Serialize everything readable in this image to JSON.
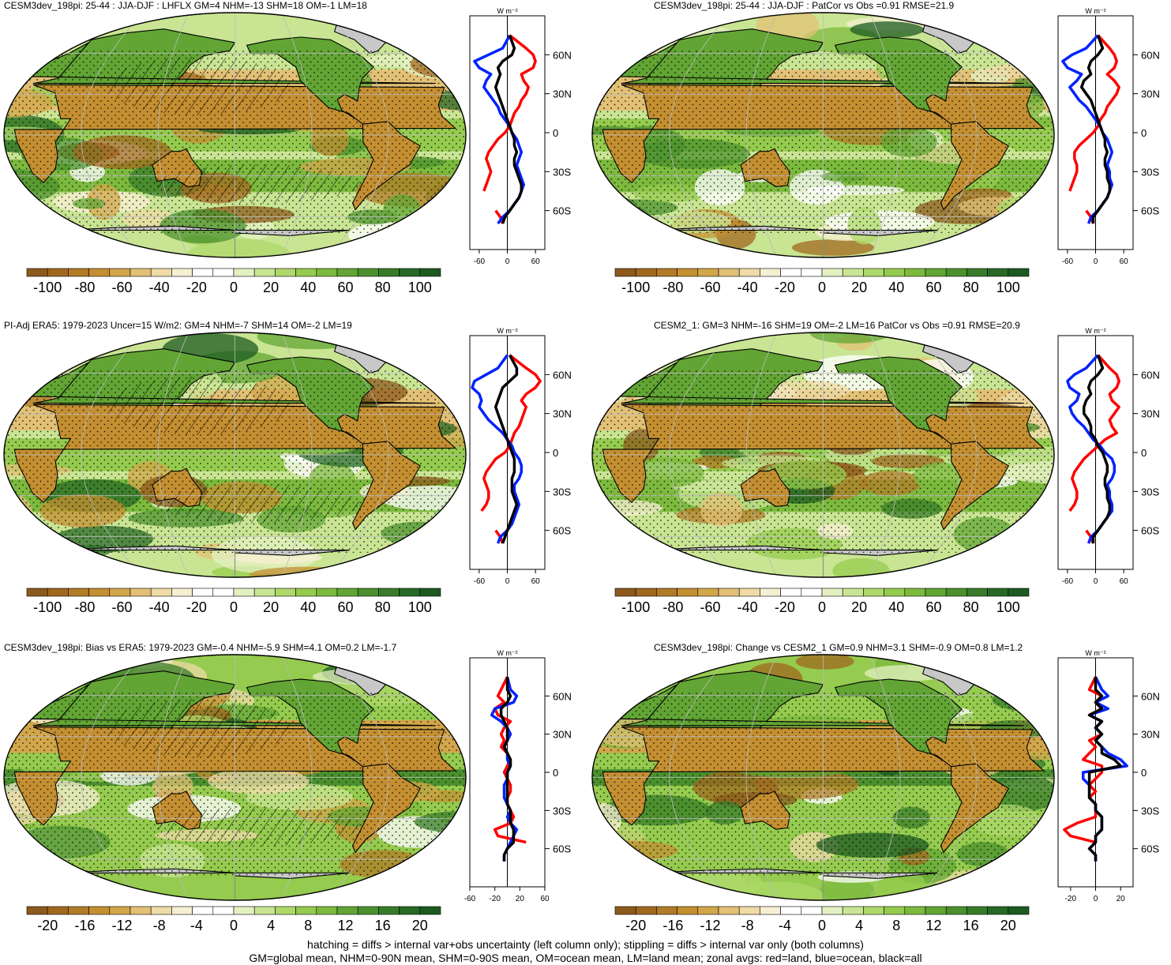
{
  "panels": [
    {
      "title": "CESM3dev_198pi: 25-44 : JJA-DJF : LHFLX GM=4 NHM=-13 SHM=18 OM=-1 LM=18",
      "colorbar_labels": [
        "-100",
        "-80",
        "-60",
        "-40",
        "-20",
        "0",
        "20",
        "40",
        "60",
        "80",
        "100"
      ],
      "profile_units": "W m⁻²",
      "profile_x_ticks": [
        "-60",
        "0",
        "60"
      ],
      "hatched": true
    },
    {
      "title": "CESM3dev_198pi: 25-44 : JJA-DJF : PatCor vs Obs =0.91 RMSE=21.9",
      "colorbar_labels": [
        "-100",
        "-80",
        "-60",
        "-40",
        "-20",
        "0",
        "20",
        "40",
        "60",
        "80",
        "100"
      ],
      "profile_units": "W m⁻²",
      "profile_x_ticks": [
        "-60",
        "0",
        "60"
      ],
      "hatched": false
    },
    {
      "title": "PI-Adj ERA5: 1979-2023 Uncer=15 W/m2: GM=4 NHM=-7 SHM=14 OM=-2 LM=19",
      "colorbar_labels": [
        "-100",
        "-80",
        "-60",
        "-40",
        "-20",
        "0",
        "20",
        "40",
        "60",
        "80",
        "100"
      ],
      "profile_units": "W m⁻²",
      "profile_x_ticks": [
        "-60",
        "0",
        "60"
      ],
      "hatched": true
    },
    {
      "title": "CESM2_1: GM=3 NHM=-16 SHM=19 OM=-2 LM=16 PatCor vs Obs =0.91 RMSE=20.9",
      "colorbar_labels": [
        "-100",
        "-80",
        "-60",
        "-40",
        "-20",
        "0",
        "20",
        "40",
        "60",
        "80",
        "100"
      ],
      "profile_units": "W m⁻²",
      "profile_x_ticks": [
        "-60",
        "0",
        "60"
      ],
      "hatched": false
    },
    {
      "title": "CESM3dev_198pi: Bias vs ERA5: 1979-2023 GM=-0.4 NHM=-5.9 SHM=4.1 OM=0.2 LM=-1.7",
      "colorbar_labels": [
        "-20",
        "-16",
        "-12",
        "-8",
        "-4",
        "0",
        "4",
        "8",
        "12",
        "16",
        "20"
      ],
      "profile_units": "W m⁻²",
      "profile_x_ticks": [
        "-60",
        "-20",
        "20",
        "60"
      ],
      "hatched": true
    },
    {
      "title": "CESM3dev_198pi: Change vs CESM2_1 GM=0.9 NHM=3.1 SHM=-0.9 OM=0.8 LM=1.2",
      "colorbar_labels": [
        "-20",
        "-16",
        "-12",
        "-8",
        "-4",
        "0",
        "4",
        "8",
        "12",
        "16",
        "20"
      ],
      "profile_units": "W m⁻²",
      "profile_x_ticks": [
        "-20",
        "0",
        "20"
      ],
      "hatched": false
    }
  ],
  "lat_ticks": [
    "60N",
    "30N",
    "0",
    "30S",
    "60S"
  ],
  "colors": {
    "brown_to_green": [
      "#8c5a1c",
      "#a0681f",
      "#b27b27",
      "#c48f31",
      "#d2a64a",
      "#e2c075",
      "#eedba6",
      "#f7efd3",
      "#ffffff",
      "#ffffff",
      "#e3f0c2",
      "#c9e593",
      "#aed86a",
      "#95cb4e",
      "#7cba3e",
      "#62a534",
      "#4b902e",
      "#387c29",
      "#276925",
      "#1c5a20"
    ],
    "land_zonal": "#ff0000",
    "ocean_zonal": "#0022ff",
    "all_zonal": "#000000",
    "missing": "#c8c8c8"
  },
  "footer": {
    "line1": "hatching = diffs > internal var+obs uncertainty (left column only); stippling = diffs > internal var only (both columns)",
    "line2": "GM=global mean, NHM=0-90N mean, SHM=0-90S mean, OM=ocean mean, LM=land mean; zonal avgs: red=land, blue=ocean, black=all"
  },
  "chart_data": [
    {
      "type": "heatmap",
      "title": "CESM3dev_198pi: 25-44 : JJA-DJF : LHFLX GM=4 NHM=-13 SHM=18 OM=-1 LM=18",
      "colorbar_range": [
        -100,
        100
      ],
      "units": "W m-2",
      "zonal_profile": {
        "type": "line",
        "xlim": [
          -80,
          80
        ],
        "lat": [
          75,
          65,
          60,
          55,
          50,
          45,
          40,
          35,
          30,
          25,
          20,
          15,
          10,
          5,
          0,
          -5,
          -10,
          -15,
          -20,
          -25,
          -30,
          -35,
          -40,
          -45,
          -50,
          -55,
          -60,
          -65,
          -70
        ],
        "series": [
          {
            "name": "red=land",
            "values": [
              5,
              40,
              55,
              60,
              55,
              30,
              35,
              45,
              40,
              30,
              25,
              15,
              10,
              5,
              -5,
              -20,
              -30,
              -40,
              -45,
              -40,
              -35,
              -40,
              -45,
              -50,
              null,
              null,
              -25,
              -15,
              -10
            ]
          },
          {
            "name": "blue=ocean",
            "values": [
              5,
              -10,
              -40,
              -70,
              -60,
              -35,
              -45,
              -50,
              -40,
              -30,
              -20,
              -15,
              -5,
              5,
              10,
              20,
              25,
              30,
              25,
              20,
              25,
              30,
              35,
              30,
              25,
              15,
              5,
              -10,
              -20
            ]
          },
          {
            "name": "black=all",
            "values": [
              5,
              15,
              10,
              -10,
              -20,
              -15,
              -20,
              -25,
              -20,
              -15,
              -10,
              -5,
              0,
              5,
              10,
              15,
              15,
              20,
              15,
              15,
              20,
              25,
              30,
              30,
              25,
              15,
              5,
              -5,
              -10
            ]
          }
        ]
      }
    },
    {
      "type": "heatmap",
      "title": "CESM3dev_198pi: 25-44 : JJA-DJF : PatCor vs Obs =0.91 RMSE=21.9",
      "colorbar_range": [
        -100,
        100
      ],
      "units": "W m-2",
      "zonal_profile": {
        "type": "line",
        "xlim": [
          -80,
          80
        ],
        "lat": [
          75,
          65,
          60,
          55,
          50,
          45,
          40,
          35,
          30,
          25,
          20,
          15,
          10,
          5,
          0,
          -5,
          -10,
          -15,
          -20,
          -25,
          -30,
          -35,
          -40,
          -45,
          -50,
          -55,
          -60,
          -65,
          -70
        ],
        "series": [
          {
            "name": "red=land",
            "values": [
              5,
              30,
              40,
              45,
              40,
              25,
              40,
              50,
              45,
              35,
              25,
              20,
              10,
              5,
              -5,
              -20,
              -35,
              -45,
              -45,
              -40,
              -40,
              -45,
              -50,
              -55,
              null,
              null,
              -20,
              -10,
              -5
            ]
          },
          {
            "name": "blue=ocean",
            "values": [
              5,
              -20,
              -50,
              -70,
              -60,
              -30,
              -40,
              -55,
              -45,
              -35,
              -20,
              -10,
              0,
              10,
              15,
              25,
              30,
              35,
              30,
              25,
              30,
              30,
              35,
              30,
              25,
              15,
              5,
              -10,
              -15
            ]
          },
          {
            "name": "black=all",
            "values": [
              5,
              15,
              5,
              -10,
              -15,
              -10,
              -25,
              -30,
              -20,
              -10,
              -5,
              0,
              5,
              10,
              15,
              20,
              20,
              25,
              20,
              20,
              25,
              25,
              30,
              30,
              25,
              15,
              5,
              -5,
              -5
            ]
          }
        ]
      }
    },
    {
      "type": "heatmap",
      "title": "PI-Adj ERA5: 1979-2023 Uncer=15 W/m2: GM=4 NHM=-7 SHM=14 OM=-2 LM=19",
      "colorbar_range": [
        -100,
        100
      ],
      "units": "W m-2",
      "zonal_profile": {
        "type": "line",
        "xlim": [
          -80,
          80
        ],
        "lat": [
          75,
          65,
          60,
          55,
          50,
          45,
          40,
          35,
          30,
          25,
          20,
          15,
          10,
          5,
          0,
          -5,
          -10,
          -15,
          -20,
          -25,
          -30,
          -35,
          -40,
          -45,
          -50,
          -55,
          -60,
          -65,
          -70
        ],
        "series": [
          {
            "name": "red=land",
            "values": [
              5,
              40,
              60,
              70,
              60,
              40,
              30,
              40,
              35,
              30,
              25,
              15,
              10,
              5,
              -5,
              -25,
              -35,
              -45,
              -50,
              -45,
              -40,
              -40,
              -45,
              -55,
              null,
              null,
              -25,
              -15,
              -10
            ]
          },
          {
            "name": "blue=ocean",
            "values": [
              0,
              -20,
              -45,
              -70,
              -75,
              -60,
              -55,
              -60,
              -50,
              -40,
              -25,
              -10,
              0,
              10,
              15,
              25,
              30,
              30,
              25,
              15,
              15,
              20,
              25,
              20,
              15,
              10,
              0,
              -15,
              -20
            ]
          },
          {
            "name": "black=all",
            "values": [
              5,
              20,
              20,
              5,
              -10,
              -15,
              -20,
              -25,
              -20,
              -15,
              -10,
              -5,
              0,
              5,
              10,
              15,
              15,
              15,
              10,
              10,
              10,
              15,
              20,
              15,
              10,
              5,
              0,
              -5,
              -10
            ]
          }
        ]
      }
    },
    {
      "type": "heatmap",
      "title": "CESM2_1: GM=3 NHM=-16 SHM=19 OM=-2 LM=16 PatCor vs Obs =0.91 RMSE=20.9",
      "colorbar_range": [
        -100,
        100
      ],
      "units": "W m-2",
      "zonal_profile": {
        "type": "line",
        "xlim": [
          -80,
          80
        ],
        "lat": [
          75,
          65,
          60,
          55,
          50,
          45,
          40,
          35,
          30,
          25,
          20,
          15,
          10,
          5,
          0,
          -5,
          -10,
          -15,
          -20,
          -25,
          -30,
          -35,
          -40,
          -45,
          -50,
          -55,
          -60,
          -65,
          -70
        ],
        "series": [
          {
            "name": "red=land",
            "values": [
              5,
              30,
              45,
              50,
              45,
              30,
              35,
              50,
              40,
              30,
              35,
              45,
              20,
              5,
              -10,
              -25,
              -35,
              -45,
              -50,
              -45,
              -40,
              -40,
              -45,
              -55,
              null,
              null,
              -20,
              -10,
              -5
            ]
          },
          {
            "name": "blue=ocean",
            "values": [
              5,
              -20,
              -45,
              -60,
              -55,
              -35,
              -40,
              -55,
              -50,
              -40,
              -25,
              -15,
              -5,
              10,
              20,
              35,
              40,
              40,
              35,
              25,
              30,
              30,
              35,
              35,
              25,
              15,
              5,
              -10,
              -15
            ]
          },
          {
            "name": "black=all",
            "values": [
              5,
              15,
              5,
              -10,
              -15,
              -10,
              -20,
              -25,
              -25,
              -15,
              -10,
              -10,
              0,
              5,
              15,
              20,
              25,
              25,
              20,
              20,
              25,
              25,
              30,
              30,
              25,
              15,
              5,
              -5,
              -5
            ]
          }
        ]
      }
    },
    {
      "type": "heatmap",
      "title": "CESM3dev_198pi: Bias vs ERA5: 1979-2023 GM=-0.4 NHM=-5.9 SHM=4.1 OM=0.2 LM=-1.7",
      "colorbar_range": [
        -20,
        20
      ],
      "units": "W m-2",
      "zonal_profile": {
        "type": "line",
        "xlim": [
          -60,
          60
        ],
        "lat": [
          75,
          65,
          60,
          55,
          50,
          45,
          40,
          35,
          30,
          25,
          20,
          15,
          10,
          5,
          0,
          -5,
          -10,
          -15,
          -20,
          -25,
          -30,
          -35,
          -40,
          -45,
          -50,
          -55,
          -60,
          -65,
          -70
        ],
        "series": [
          {
            "name": "red=land",
            "values": [
              0,
              -10,
              -15,
              -5,
              -20,
              -15,
              5,
              -5,
              -10,
              -5,
              -10,
              0,
              5,
              0,
              -5,
              0,
              5,
              5,
              0,
              0,
              5,
              10,
              5,
              -20,
              -15,
              30,
              null,
              null,
              null
            ]
          },
          {
            "name": "blue=ocean",
            "values": [
              0,
              5,
              15,
              10,
              -20,
              -25,
              -10,
              0,
              5,
              0,
              -5,
              0,
              0,
              5,
              0,
              0,
              -5,
              -5,
              -5,
              0,
              5,
              0,
              5,
              15,
              10,
              5,
              0,
              -5,
              -5
            ]
          },
          {
            "name": "black=all",
            "values": [
              0,
              0,
              5,
              0,
              -10,
              -10,
              -5,
              0,
              0,
              0,
              -5,
              0,
              5,
              5,
              0,
              0,
              0,
              0,
              0,
              0,
              5,
              5,
              5,
              10,
              10,
              10,
              0,
              -5,
              -5
            ]
          }
        ]
      }
    },
    {
      "type": "heatmap",
      "title": "CESM3dev_198pi: Change vs CESM2_1 GM=0.9 NHM=3.1 SHM=-0.9 OM=0.8 LM=1.2",
      "colorbar_range": [
        -20,
        20
      ],
      "units": "W m-2",
      "zonal_profile": {
        "type": "line",
        "xlim": [
          -30,
          30
        ],
        "lat": [
          75,
          65,
          60,
          55,
          50,
          45,
          40,
          35,
          30,
          25,
          20,
          15,
          10,
          5,
          0,
          -5,
          -10,
          -15,
          -20,
          -25,
          -30,
          -35,
          -40,
          -45,
          -50,
          -55,
          -60,
          -65,
          -70
        ],
        "series": [
          {
            "name": "red=land",
            "values": [
              0,
              -5,
              5,
              0,
              5,
              -5,
              5,
              0,
              5,
              -5,
              0,
              -5,
              -10,
              5,
              5,
              0,
              -5,
              0,
              -5,
              0,
              0,
              0,
              -15,
              -25,
              -20,
              0,
              null,
              null,
              null
            ]
          },
          {
            "name": "blue=ocean",
            "values": [
              0,
              5,
              10,
              0,
              10,
              -5,
              5,
              0,
              5,
              0,
              5,
              10,
              20,
              25,
              -10,
              -10,
              -5,
              -5,
              -5,
              0,
              0,
              5,
              5,
              5,
              0,
              0,
              -5,
              0,
              0
            ]
          },
          {
            "name": "black=all",
            "values": [
              0,
              0,
              5,
              0,
              5,
              -5,
              5,
              0,
              5,
              0,
              5,
              5,
              15,
              20,
              -5,
              -5,
              -5,
              -5,
              -5,
              0,
              0,
              5,
              5,
              5,
              0,
              0,
              -5,
              0,
              0
            ]
          }
        ]
      }
    }
  ]
}
